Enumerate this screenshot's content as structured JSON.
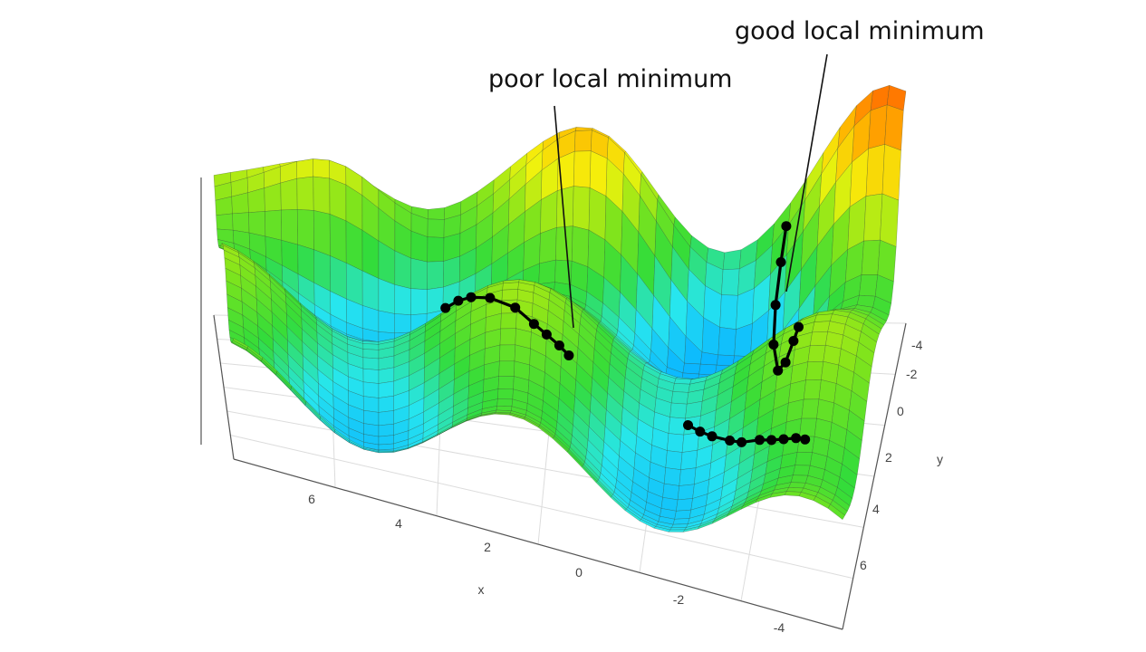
{
  "chart_data": {
    "type": "surface3d",
    "title": "",
    "xlabel": "x",
    "ylabel": "y",
    "zlabel": "",
    "x_ticks": [
      "6",
      "4",
      "2",
      "0",
      "-2",
      "-4"
    ],
    "y_ticks": [
      "-4",
      "-2",
      "0",
      "2",
      "4",
      "6"
    ],
    "x_range": [
      -4.5,
      7.5
    ],
    "y_range": [
      -5,
      7
    ],
    "colorscale": [
      "#0bb6ff",
      "#27e6ee",
      "#33dc3a",
      "#7fe41c",
      "#f4f30c",
      "#ffb000",
      "#ff5a00",
      "#ff1a00"
    ],
    "grid": true,
    "annotations": [
      {
        "text": "poor local minimum"
      },
      {
        "text": "good local minimum"
      }
    ],
    "trajectories": [
      {
        "points": [
          [
            -0.5,
            1
          ],
          [
            -0.3,
            2
          ],
          [
            -0.2,
            3
          ],
          [
            -0.1,
            4
          ],
          [
            0,
            5
          ],
          [
            0.1,
            6
          ],
          [
            0.3,
            7
          ],
          [
            0.6,
            8
          ],
          [
            0.9,
            9
          ]
        ]
      },
      {
        "points": [
          [
            0.2,
            1
          ],
          [
            0.1,
            2
          ],
          [
            0.2,
            3
          ],
          [
            0.3,
            4
          ],
          [
            0.6,
            5
          ],
          [
            0.9,
            6
          ],
          [
            1.2,
            7
          ],
          [
            1.5,
            8
          ]
        ]
      },
      {
        "points": [
          [
            1.5,
            1
          ],
          [
            1.6,
            2
          ],
          [
            1.7,
            3
          ],
          [
            1.9,
            4
          ],
          [
            2.1,
            5
          ],
          [
            2.3,
            6
          ],
          [
            2.5,
            7
          ],
          [
            2.6,
            8
          ],
          [
            2.7,
            9
          ],
          [
            2.8,
            10
          ]
        ]
      }
    ]
  }
}
